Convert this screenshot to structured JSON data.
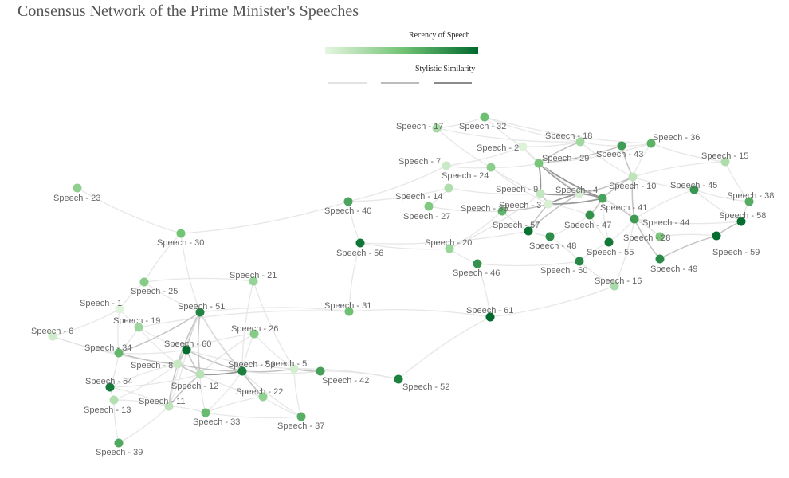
{
  "title": "Consensus Network of the Prime Minister's Speeches",
  "legend": {
    "recency_title": "Recency of Speech",
    "similarity_title": "Stylistic Similarity",
    "color_low": "#e5f5e0",
    "color_high": "#00692d",
    "edge_colors": [
      "#e3e3e3",
      "#bdbdbd",
      "#8c8c8c"
    ]
  },
  "nodes": [
    {
      "id": 1,
      "label": "Speech - 1",
      "recency": 0.02
    },
    {
      "id": 2,
      "label": "Speech - 2",
      "recency": 0.03
    },
    {
      "id": 3,
      "label": "Speech - 3",
      "recency": 0.05
    },
    {
      "id": 4,
      "label": "Speech - 4",
      "recency": 0.07
    },
    {
      "id": 5,
      "label": "Speech - 5",
      "recency": 0.08
    },
    {
      "id": 6,
      "label": "Speech - 6",
      "recency": 0.1
    },
    {
      "id": 7,
      "label": "Speech - 7",
      "recency": 0.12
    },
    {
      "id": 8,
      "label": "Speech - 8",
      "recency": 0.13
    },
    {
      "id": 9,
      "label": "Speech - 9",
      "recency": 0.15
    },
    {
      "id": 10,
      "label": "Speech - 10",
      "recency": 0.17
    },
    {
      "id": 11,
      "label": "Speech - 11",
      "recency": 0.18
    },
    {
      "id": 12,
      "label": "Speech - 12",
      "recency": 0.2
    },
    {
      "id": 13,
      "label": "Speech - 13",
      "recency": 0.22
    },
    {
      "id": 14,
      "label": "Speech - 14",
      "recency": 0.23
    },
    {
      "id": 15,
      "label": "Speech - 15",
      "recency": 0.25
    },
    {
      "id": 16,
      "label": "Speech - 16",
      "recency": 0.27
    },
    {
      "id": 17,
      "label": "Speech - 17",
      "recency": 0.28
    },
    {
      "id": 18,
      "label": "Speech - 18",
      "recency": 0.3
    },
    {
      "id": 19,
      "label": "Speech - 19",
      "recency": 0.32
    },
    {
      "id": 20,
      "label": "Speech - 20",
      "recency": 0.33
    },
    {
      "id": 21,
      "label": "Speech - 21",
      "recency": 0.35
    },
    {
      "id": 22,
      "label": "Speech - 22",
      "recency": 0.37
    },
    {
      "id": 23,
      "label": "Speech - 23",
      "recency": 0.38
    },
    {
      "id": 24,
      "label": "Speech - 24",
      "recency": 0.4
    },
    {
      "id": 25,
      "label": "Speech - 25",
      "recency": 0.42
    },
    {
      "id": 26,
      "label": "Speech - 26",
      "recency": 0.43
    },
    {
      "id": 27,
      "label": "Speech - 27",
      "recency": 0.45
    },
    {
      "id": 28,
      "label": "Speech - 28",
      "recency": 0.47
    },
    {
      "id": 29,
      "label": "Speech - 29",
      "recency": 0.48
    },
    {
      "id": 30,
      "label": "Speech - 30",
      "recency": 0.5
    },
    {
      "id": 31,
      "label": "Speech - 31",
      "recency": 0.52
    },
    {
      "id": 32,
      "label": "Speech - 32",
      "recency": 0.53
    },
    {
      "id": 33,
      "label": "Speech - 33",
      "recency": 0.55
    },
    {
      "id": 34,
      "label": "Speech - 34",
      "recency": 0.57
    },
    {
      "id": 35,
      "label": "Speech - 35",
      "recency": 0.58
    },
    {
      "id": 36,
      "label": "Speech - 36",
      "recency": 0.6
    },
    {
      "id": 37,
      "label": "Speech - 37",
      "recency": 0.62
    },
    {
      "id": 38,
      "label": "Speech - 38",
      "recency": 0.63
    },
    {
      "id": 39,
      "label": "Speech - 39",
      "recency": 0.65
    },
    {
      "id": 40,
      "label": "Speech - 40",
      "recency": 0.67
    },
    {
      "id": 41,
      "label": "Speech - 41",
      "recency": 0.68
    },
    {
      "id": 42,
      "label": "Speech - 42",
      "recency": 0.7
    },
    {
      "id": 43,
      "label": "Speech - 43",
      "recency": 0.72
    },
    {
      "id": 44,
      "label": "Speech - 44",
      "recency": 0.73
    },
    {
      "id": 45,
      "label": "Speech - 45",
      "recency": 0.75
    },
    {
      "id": 46,
      "label": "Speech - 46",
      "recency": 0.77
    },
    {
      "id": 47,
      "label": "Speech - 47",
      "recency": 0.78
    },
    {
      "id": 48,
      "label": "Speech - 48",
      "recency": 0.8
    },
    {
      "id": 49,
      "label": "Speech - 49",
      "recency": 0.82
    },
    {
      "id": 50,
      "label": "Speech - 50",
      "recency": 0.83
    },
    {
      "id": 51,
      "label": "Speech - 51",
      "recency": 0.85
    },
    {
      "id": 52,
      "label": "Speech - 52",
      "recency": 0.87
    },
    {
      "id": 53,
      "label": "Speech - 53",
      "recency": 0.88
    },
    {
      "id": 54,
      "label": "Speech - 54",
      "recency": 0.9
    },
    {
      "id": 55,
      "label": "Speech - 55",
      "recency": 0.92
    },
    {
      "id": 56,
      "label": "Speech - 56",
      "recency": 0.93
    },
    {
      "id": 57,
      "label": "Speech - 57",
      "recency": 0.95
    },
    {
      "id": 58,
      "label": "Speech - 58",
      "recency": 0.97
    },
    {
      "id": 59,
      "label": "Speech - 59",
      "recency": 0.98
    },
    {
      "id": 60,
      "label": "Speech - 60",
      "recency": 0.99
    },
    {
      "id": 61,
      "label": "Speech - 61",
      "recency": 1.0
    }
  ],
  "edges": [
    [
      23,
      30,
      1
    ],
    [
      30,
      40,
      1
    ],
    [
      30,
      25,
      1
    ],
    [
      30,
      51,
      1
    ],
    [
      40,
      7,
      1
    ],
    [
      40,
      14,
      1
    ],
    [
      40,
      56,
      1
    ],
    [
      56,
      20,
      1
    ],
    [
      56,
      31,
      1
    ],
    [
      56,
      57,
      1
    ],
    [
      20,
      46,
      1
    ],
    [
      20,
      35,
      1
    ],
    [
      20,
      9,
      1
    ],
    [
      27,
      14,
      1
    ],
    [
      27,
      35,
      1
    ],
    [
      14,
      9,
      1
    ],
    [
      7,
      24,
      1
    ],
    [
      7,
      2,
      1
    ],
    [
      24,
      29,
      1
    ],
    [
      24,
      9,
      1
    ],
    [
      17,
      32,
      1
    ],
    [
      17,
      18,
      1
    ],
    [
      17,
      24,
      1
    ],
    [
      32,
      2,
      1
    ],
    [
      32,
      18,
      1
    ],
    [
      32,
      36,
      1
    ],
    [
      2,
      29,
      1
    ],
    [
      2,
      18,
      1
    ],
    [
      18,
      43,
      1
    ],
    [
      18,
      29,
      2
    ],
    [
      29,
      43,
      2
    ],
    [
      29,
      36,
      1
    ],
    [
      43,
      36,
      1
    ],
    [
      36,
      10,
      1
    ],
    [
      36,
      15,
      1
    ],
    [
      15,
      10,
      1
    ],
    [
      15,
      38,
      1
    ],
    [
      10,
      45,
      1
    ],
    [
      45,
      38,
      1
    ],
    [
      45,
      58,
      1
    ],
    [
      38,
      58,
      1
    ],
    [
      58,
      59,
      2
    ],
    [
      59,
      28,
      1
    ],
    [
      59,
      49,
      2
    ],
    [
      28,
      44,
      1
    ],
    [
      44,
      49,
      2
    ],
    [
      44,
      41,
      2
    ],
    [
      41,
      4,
      3
    ],
    [
      4,
      3,
      3
    ],
    [
      3,
      9,
      2
    ],
    [
      9,
      29,
      3
    ],
    [
      29,
      41,
      3
    ],
    [
      29,
      4,
      3
    ],
    [
      4,
      10,
      2
    ],
    [
      10,
      41,
      2
    ],
    [
      10,
      44,
      2
    ],
    [
      4,
      57,
      2
    ],
    [
      3,
      57,
      2
    ],
    [
      57,
      48,
      1
    ],
    [
      48,
      47,
      1
    ],
    [
      47,
      41,
      2
    ],
    [
      47,
      55,
      1
    ],
    [
      55,
      50,
      1
    ],
    [
      50,
      16,
      1
    ],
    [
      16,
      44,
      1
    ],
    [
      55,
      44,
      1
    ],
    [
      35,
      3,
      2
    ],
    [
      35,
      57,
      1
    ],
    [
      9,
      4,
      3
    ],
    [
      3,
      41,
      3
    ],
    [
      41,
      55,
      1
    ],
    [
      28,
      41,
      1
    ],
    [
      43,
      10,
      2
    ],
    [
      24,
      3,
      1
    ],
    [
      2,
      4,
      1
    ],
    [
      18,
      10,
      1
    ],
    [
      44,
      58,
      1
    ],
    [
      45,
      44,
      1
    ],
    [
      47,
      3,
      1
    ],
    [
      50,
      48,
      1
    ],
    [
      46,
      50,
      1
    ],
    [
      61,
      46,
      1
    ],
    [
      61,
      31,
      1
    ],
    [
      61,
      52,
      1
    ],
    [
      61,
      16,
      1
    ],
    [
      52,
      42,
      1
    ],
    [
      52,
      5,
      1
    ],
    [
      42,
      5,
      1
    ],
    [
      31,
      19,
      1
    ],
    [
      31,
      51,
      1
    ],
    [
      21,
      25,
      1
    ],
    [
      21,
      5,
      1
    ],
    [
      21,
      53,
      1
    ],
    [
      25,
      1,
      1
    ],
    [
      25,
      51,
      1
    ],
    [
      1,
      34,
      1
    ],
    [
      1,
      19,
      1
    ],
    [
      6,
      34,
      1
    ],
    [
      6,
      8,
      1
    ],
    [
      6,
      1,
      1
    ],
    [
      34,
      19,
      1
    ],
    [
      34,
      51,
      2
    ],
    [
      34,
      8,
      2
    ],
    [
      34,
      60,
      1
    ],
    [
      19,
      8,
      1
    ],
    [
      19,
      60,
      1
    ],
    [
      51,
      60,
      2
    ],
    [
      51,
      53,
      2
    ],
    [
      51,
      8,
      2
    ],
    [
      51,
      12,
      2
    ],
    [
      51,
      22,
      1
    ],
    [
      51,
      11,
      1
    ],
    [
      26,
      60,
      1
    ],
    [
      26,
      53,
      1
    ],
    [
      26,
      5,
      1
    ],
    [
      26,
      12,
      1
    ],
    [
      60,
      53,
      2
    ],
    [
      60,
      8,
      2
    ],
    [
      60,
      12,
      2
    ],
    [
      60,
      5,
      1
    ],
    [
      8,
      53,
      2
    ],
    [
      8,
      12,
      2
    ],
    [
      8,
      11,
      2
    ],
    [
      8,
      54,
      1
    ],
    [
      12,
      53,
      3
    ],
    [
      12,
      11,
      2
    ],
    [
      12,
      33,
      1
    ],
    [
      12,
      22,
      1
    ],
    [
      53,
      5,
      2
    ],
    [
      53,
      22,
      2
    ],
    [
      53,
      42,
      1
    ],
    [
      53,
      37,
      1
    ],
    [
      5,
      42,
      2
    ],
    [
      5,
      37,
      1
    ],
    [
      22,
      33,
      1
    ],
    [
      33,
      11,
      1
    ],
    [
      33,
      37,
      1
    ],
    [
      11,
      54,
      1
    ],
    [
      11,
      13,
      1
    ],
    [
      54,
      13,
      1
    ],
    [
      54,
      34,
      1
    ],
    [
      13,
      39,
      1
    ],
    [
      39,
      11,
      1
    ],
    [
      22,
      37,
      1
    ],
    [
      11,
      60,
      1
    ],
    [
      13,
      8,
      1
    ],
    [
      54,
      12,
      1
    ],
    [
      33,
      53,
      1
    ]
  ]
}
